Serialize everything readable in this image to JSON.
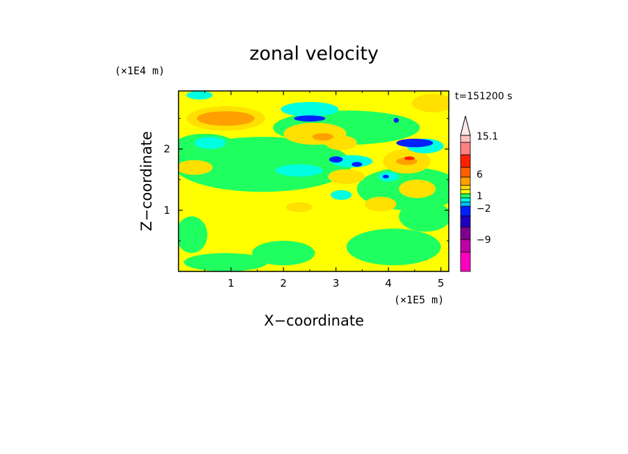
{
  "chart_data": {
    "type": "heatmap",
    "title": "zonal velocity",
    "xlabel": "X−coordinate",
    "ylabel": "Z−coordinate",
    "x_scale_note": "(×1E5 m)",
    "y_scale_note": "(×1E4 m)",
    "time_label": "t=151200 s",
    "xlim": [
      0,
      5.15
    ],
    "ylim": [
      0,
      2.95
    ],
    "x_ticks": [
      "1",
      "2",
      "3",
      "4",
      "5"
    ],
    "y_ticks": [
      "1",
      "2"
    ],
    "x_tick_values": [
      1,
      2,
      3,
      4,
      5
    ],
    "y_tick_values": [
      1,
      2
    ],
    "colorbar": {
      "tick_labels": [
        "15.1",
        "6",
        "1",
        "−2",
        "−9"
      ],
      "levels": [
        {
          "color": "#ff00c0"
        },
        {
          "color": "#c000a8"
        },
        {
          "color": "#800090"
        },
        {
          "color": "#2000c0"
        },
        {
          "color": "#0020ff"
        },
        {
          "color": "#00c0ff"
        },
        {
          "color": "#00ffe0"
        },
        {
          "color": "#20ff60"
        },
        {
          "color": "#ffff00"
        },
        {
          "color": "#ffe000"
        },
        {
          "color": "#ffa000"
        },
        {
          "color": "#ff6000"
        },
        {
          "color": "#ff2000"
        },
        {
          "color": "#ff8080"
        },
        {
          "color": "#ffc0c0"
        }
      ]
    },
    "background_color": "#ffff00",
    "regions": [
      {
        "cls": "green",
        "cx": 1.6,
        "cy": 1.75,
        "rx": 1.7,
        "ry": 0.45
      },
      {
        "cls": "green",
        "cx": 4.4,
        "cy": 1.35,
        "rx": 1.0,
        "ry": 0.35
      },
      {
        "cls": "green",
        "cx": 3.2,
        "cy": 2.35,
        "rx": 1.4,
        "ry": 0.28
      },
      {
        "cls": "green",
        "cx": 0.5,
        "cy": 2.05,
        "rx": 0.6,
        "ry": 0.2
      },
      {
        "cls": "green",
        "cx": 2.0,
        "cy": 0.3,
        "rx": 0.6,
        "ry": 0.2
      },
      {
        "cls": "green",
        "cx": 0.9,
        "cy": 0.15,
        "rx": 0.8,
        "ry": 0.15
      },
      {
        "cls": "green",
        "cx": 4.1,
        "cy": 0.4,
        "rx": 0.9,
        "ry": 0.3
      },
      {
        "cls": "green",
        "cx": 0.25,
        "cy": 0.6,
        "rx": 0.3,
        "ry": 0.3
      },
      {
        "cls": "green",
        "cx": 4.7,
        "cy": 0.9,
        "rx": 0.5,
        "ry": 0.25
      },
      {
        "cls": "orange",
        "cx": 0.9,
        "cy": 2.5,
        "rx": 0.55,
        "ry": 0.12
      },
      {
        "cls": "lorange",
        "cx": 0.9,
        "cy": 2.5,
        "rx": 0.75,
        "ry": 0.2
      },
      {
        "cls": "lorange",
        "cx": 2.6,
        "cy": 2.25,
        "rx": 0.6,
        "ry": 0.18
      },
      {
        "cls": "lorange",
        "cx": 4.85,
        "cy": 2.75,
        "rx": 0.4,
        "ry": 0.15
      },
      {
        "cls": "lorange",
        "cx": 0.3,
        "cy": 1.7,
        "rx": 0.35,
        "ry": 0.12
      },
      {
        "cls": "lorange",
        "cx": 4.35,
        "cy": 1.8,
        "rx": 0.45,
        "ry": 0.2
      },
      {
        "cls": "lorange",
        "cx": 3.2,
        "cy": 1.55,
        "rx": 0.35,
        "ry": 0.12
      },
      {
        "cls": "lorange",
        "cx": 4.55,
        "cy": 1.35,
        "rx": 0.35,
        "ry": 0.15
      },
      {
        "cls": "lorange",
        "cx": 3.85,
        "cy": 1.1,
        "rx": 0.3,
        "ry": 0.12
      },
      {
        "cls": "lorange",
        "cx": 2.3,
        "cy": 1.05,
        "rx": 0.25,
        "ry": 0.08
      },
      {
        "cls": "lorange",
        "cx": 3.1,
        "cy": 2.1,
        "rx": 0.3,
        "ry": 0.12
      },
      {
        "cls": "cyan",
        "cx": 0.6,
        "cy": 2.1,
        "rx": 0.3,
        "ry": 0.1
      },
      {
        "cls": "cyan",
        "cx": 2.5,
        "cy": 2.65,
        "rx": 0.55,
        "ry": 0.12
      },
      {
        "cls": "cyan",
        "cx": 2.3,
        "cy": 1.65,
        "rx": 0.45,
        "ry": 0.1
      },
      {
        "cls": "cyan",
        "cx": 3.3,
        "cy": 1.8,
        "rx": 0.4,
        "ry": 0.1
      },
      {
        "cls": "cyan",
        "cx": 4.0,
        "cy": 1.55,
        "rx": 0.2,
        "ry": 0.08
      },
      {
        "cls": "cyan",
        "cx": 3.1,
        "cy": 1.25,
        "rx": 0.2,
        "ry": 0.08
      },
      {
        "cls": "cyan",
        "cx": 4.7,
        "cy": 2.05,
        "rx": 0.35,
        "ry": 0.12
      },
      {
        "cls": "cyan",
        "cx": 0.4,
        "cy": 2.88,
        "rx": 0.25,
        "ry": 0.07
      },
      {
        "cls": "blue",
        "cx": 2.5,
        "cy": 2.5,
        "rx": 0.3,
        "ry": 0.05
      },
      {
        "cls": "blue",
        "cx": 4.5,
        "cy": 2.1,
        "rx": 0.35,
        "ry": 0.07
      },
      {
        "cls": "blue",
        "cx": 3.0,
        "cy": 1.83,
        "rx": 0.13,
        "ry": 0.05
      },
      {
        "cls": "blue",
        "cx": 3.4,
        "cy": 1.75,
        "rx": 0.1,
        "ry": 0.04
      },
      {
        "cls": "blue",
        "cx": 4.15,
        "cy": 2.47,
        "rx": 0.05,
        "ry": 0.04
      },
      {
        "cls": "blue",
        "cx": 3.95,
        "cy": 1.55,
        "rx": 0.06,
        "ry": 0.03
      },
      {
        "cls": "red",
        "cx": 4.4,
        "cy": 1.85,
        "rx": 0.1,
        "ry": 0.03
      },
      {
        "cls": "orange",
        "cx": 2.75,
        "cy": 2.2,
        "rx": 0.2,
        "ry": 0.06
      },
      {
        "cls": "orange",
        "cx": 4.35,
        "cy": 1.8,
        "rx": 0.2,
        "ry": 0.06
      }
    ]
  }
}
